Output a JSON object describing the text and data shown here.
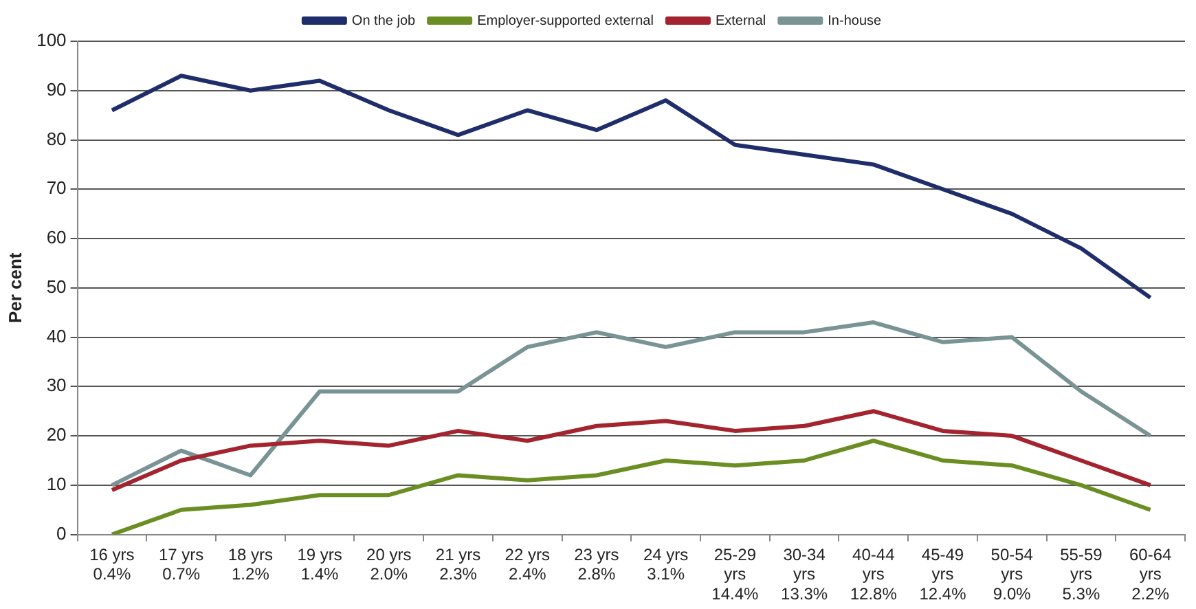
{
  "chart_data": {
    "type": "line",
    "ylabel": "Per cent",
    "categories": [
      "16 yrs\n0.4%",
      "17 yrs\n0.7%",
      "18 yrs\n1.2%",
      "19 yrs\n1.4%",
      "20 yrs\n2.0%",
      "21 yrs\n2.3%",
      "22 yrs\n2.4%",
      "23 yrs\n2.8%",
      "24 yrs\n3.1%",
      "25-29\nyrs\n14.4%",
      "30-34\nyrs\n13.3%",
      "40-44\nyrs\n12.8%",
      "45-49\nyrs\n12.4%",
      "50-54\nyrs\n9.0%",
      "55-59\nyrs\n5.3%",
      "60-64\nyrs\n2.2%"
    ],
    "series": [
      {
        "name": "On the job",
        "color": "#1f2d6b",
        "values": [
          86,
          93,
          90,
          92,
          86,
          81,
          86,
          82,
          88,
          79,
          77,
          75,
          70,
          65,
          58,
          48
        ]
      },
      {
        "name": "Employer-supported external",
        "color": "#6b8e23",
        "values": [
          0,
          5,
          6,
          8,
          8,
          12,
          11,
          12,
          15,
          14,
          15,
          19,
          15,
          14,
          10,
          5
        ]
      },
      {
        "name": "External",
        "color": "#a3232e",
        "values": [
          9,
          15,
          18,
          19,
          18,
          21,
          19,
          22,
          23,
          21,
          22,
          25,
          21,
          20,
          15,
          10
        ]
      },
      {
        "name": "In-house",
        "color": "#7a9496",
        "values": [
          10,
          17,
          12,
          29,
          29,
          29,
          38,
          41,
          38,
          41,
          41,
          43,
          39,
          40,
          29,
          20
        ]
      }
    ],
    "ylim": [
      0,
      100
    ],
    "yticks": [
      0,
      10,
      20,
      30,
      40,
      50,
      60,
      70,
      80,
      90,
      100
    ],
    "grid": "y",
    "legend": "top",
    "marker": "none"
  }
}
